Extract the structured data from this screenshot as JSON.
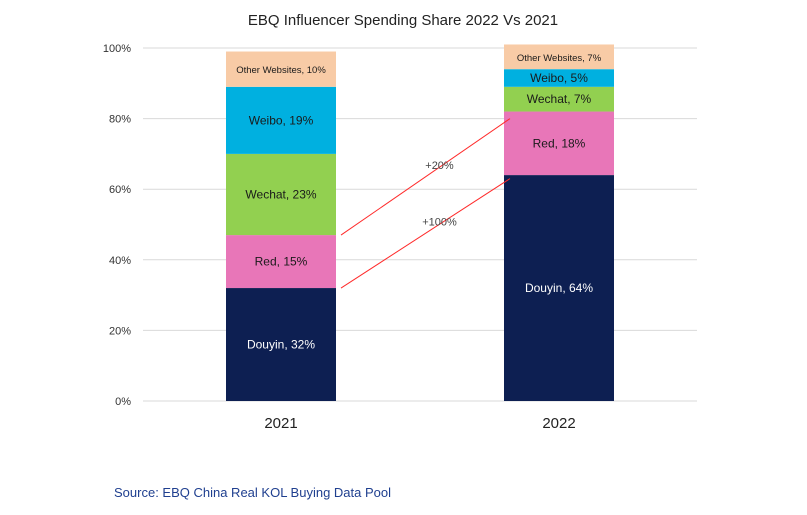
{
  "chart_data": {
    "type": "bar",
    "stacked": true,
    "percent": true,
    "title": "EBQ Influencer Spending Share 2022 Vs 2021",
    "xlabel": "",
    "ylabel": "",
    "ylim": [
      0,
      100
    ],
    "yticks": [
      "0%",
      "20%",
      "40%",
      "60%",
      "80%",
      "100%"
    ],
    "ytick_values": [
      0,
      20,
      40,
      60,
      80,
      100
    ],
    "grid": true,
    "categories": [
      "2021",
      "2022"
    ],
    "series": [
      {
        "name": "Douyin",
        "color": "#0d1f52",
        "label_color": "#ffffff",
        "values": [
          32,
          64
        ],
        "labels": [
          "Douyin, 32%",
          "Douyin, 64%"
        ]
      },
      {
        "name": "Red",
        "color": "#e876b8",
        "label_color": "#1a1a1a",
        "values": [
          15,
          18
        ],
        "labels": [
          "Red, 15%",
          "Red, 18%"
        ]
      },
      {
        "name": "Wechat",
        "color": "#92d050",
        "label_color": "#1a1a1a",
        "values": [
          23,
          7
        ],
        "labels": [
          "Wechat, 23%",
          "Wechat, 7%"
        ]
      },
      {
        "name": "Weibo",
        "color": "#00b0e0",
        "label_color": "#1a1a1a",
        "values": [
          19,
          5
        ],
        "labels": [
          "Weibo, 19%",
          "Weibo, 5%"
        ]
      },
      {
        "name": "Other Websites",
        "color": "#f8cba6",
        "label_color": "#1a1a1a",
        "values": [
          10,
          7
        ],
        "labels": [
          "Other Websites, 10%",
          "Other Websites, 7%"
        ],
        "small_label": true
      }
    ],
    "annotations": [
      {
        "text": "+20%",
        "line_from": {
          "category": "2021",
          "value": 47
        },
        "line_to": {
          "category": "2022",
          "value": 80
        }
      },
      {
        "text": "+100%",
        "line_from": {
          "category": "2021",
          "value": 32
        },
        "line_to": {
          "category": "2022",
          "value": 63
        }
      }
    ],
    "annotation_line_color": "#ff2a2a"
  },
  "source": "Source: EBQ China Real KOL Buying Data Pool"
}
